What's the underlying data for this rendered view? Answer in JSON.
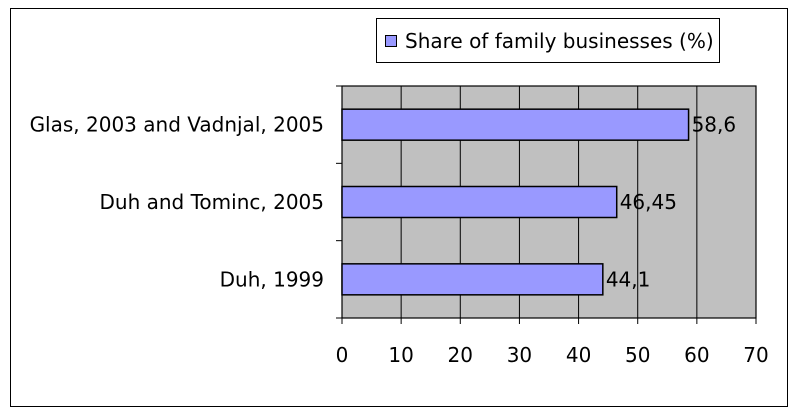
{
  "chart_data": {
    "type": "bar",
    "orientation": "horizontal",
    "categories": [
      "Glas, 2003 and Vadnjal, 2005",
      "Duh and Tominc, 2005",
      "Duh, 1999"
    ],
    "series": [
      {
        "name": "Share of family businesses (%)",
        "values": [
          58.6,
          46.45,
          44.1
        ]
      }
    ],
    "data_labels": [
      "58,6",
      "46,45",
      "44,1"
    ],
    "x_ticks": [
      0,
      10,
      20,
      30,
      40,
      50,
      60,
      70
    ],
    "xlim": [
      0,
      70
    ],
    "grid": true,
    "legend_position": "top-right",
    "colors": {
      "bar": "#9999ff",
      "plot_area": "#c0c0c0",
      "border": "#000000"
    }
  }
}
